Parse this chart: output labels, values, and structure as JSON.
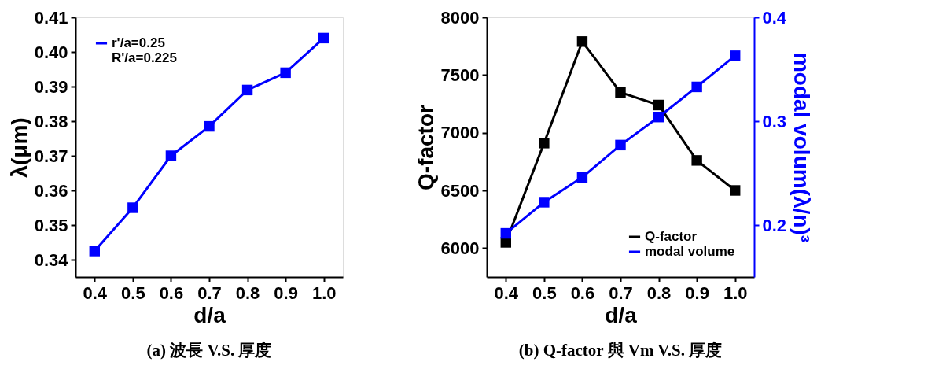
{
  "chart_data": [
    {
      "type": "line",
      "xlabel": "d/a",
      "ylabel": "λ(μm)",
      "annotations": [
        "(a) 波長 V.S. 厚度"
      ],
      "x": [
        0.4,
        0.5,
        0.6,
        0.7,
        0.8,
        0.9,
        1.0
      ],
      "series": [
        {
          "name": "r'/a=0.25\nR'/a=0.225",
          "color": "#0000ff",
          "values": [
            0.3425,
            0.355,
            0.37,
            0.3785,
            0.389,
            0.394,
            0.404
          ]
        }
      ],
      "xlim": [
        0.35,
        1.05
      ],
      "xticks": [
        0.4,
        0.5,
        0.6,
        0.7,
        0.8,
        0.9,
        {
          "value": 1.0,
          "label": "1.0"
        }
      ],
      "ylim": [
        0.335,
        0.41
      ],
      "yticks": [
        0.34,
        0.35,
        0.36,
        0.37,
        0.38,
        0.39,
        {
          "value": 0.4,
          "label": "0.40"
        },
        0.41
      ],
      "grid": false,
      "legend": "top left",
      "marker": "square",
      "line_style": "solid"
    },
    {
      "type": "line",
      "xlabel": "d/a",
      "ylabel": "Q-factor",
      "y2label": "modal volum(λ/n)³",
      "annotations": [
        "(b) Q-factor 與 Vm V.S. 厚度"
      ],
      "x": [
        0.4,
        0.5,
        0.6,
        0.7,
        0.8,
        0.9,
        1.0
      ],
      "series": [
        {
          "name": "Q-factor",
          "color": "#000000",
          "values": [
            6050,
            6910,
            7790,
            7350,
            7240,
            6760,
            6500
          ]
        },
        {
          "name": "modal volume",
          "color": "#0000ff",
          "axis": "y2",
          "values": [
            0.192,
            0.222,
            0.246,
            0.277,
            0.304,
            0.333,
            0.363
          ]
        }
      ],
      "xlim": [
        0.35,
        1.05
      ],
      "xticks": [
        0.4,
        0.5,
        0.6,
        0.7,
        0.8,
        0.9,
        {
          "value": 1.0,
          "label": "1.0"
        }
      ],
      "ylim": [
        5750,
        8000
      ],
      "yticks": [
        6000,
        6500,
        7000,
        7500,
        8000
      ],
      "y2lim": [
        0.15,
        0.4
      ],
      "y2ticks": [
        0.2,
        0.3,
        0.4
      ],
      "grid": false,
      "legend": "bottom right",
      "marker": "square",
      "line_style": "solid"
    }
  ]
}
